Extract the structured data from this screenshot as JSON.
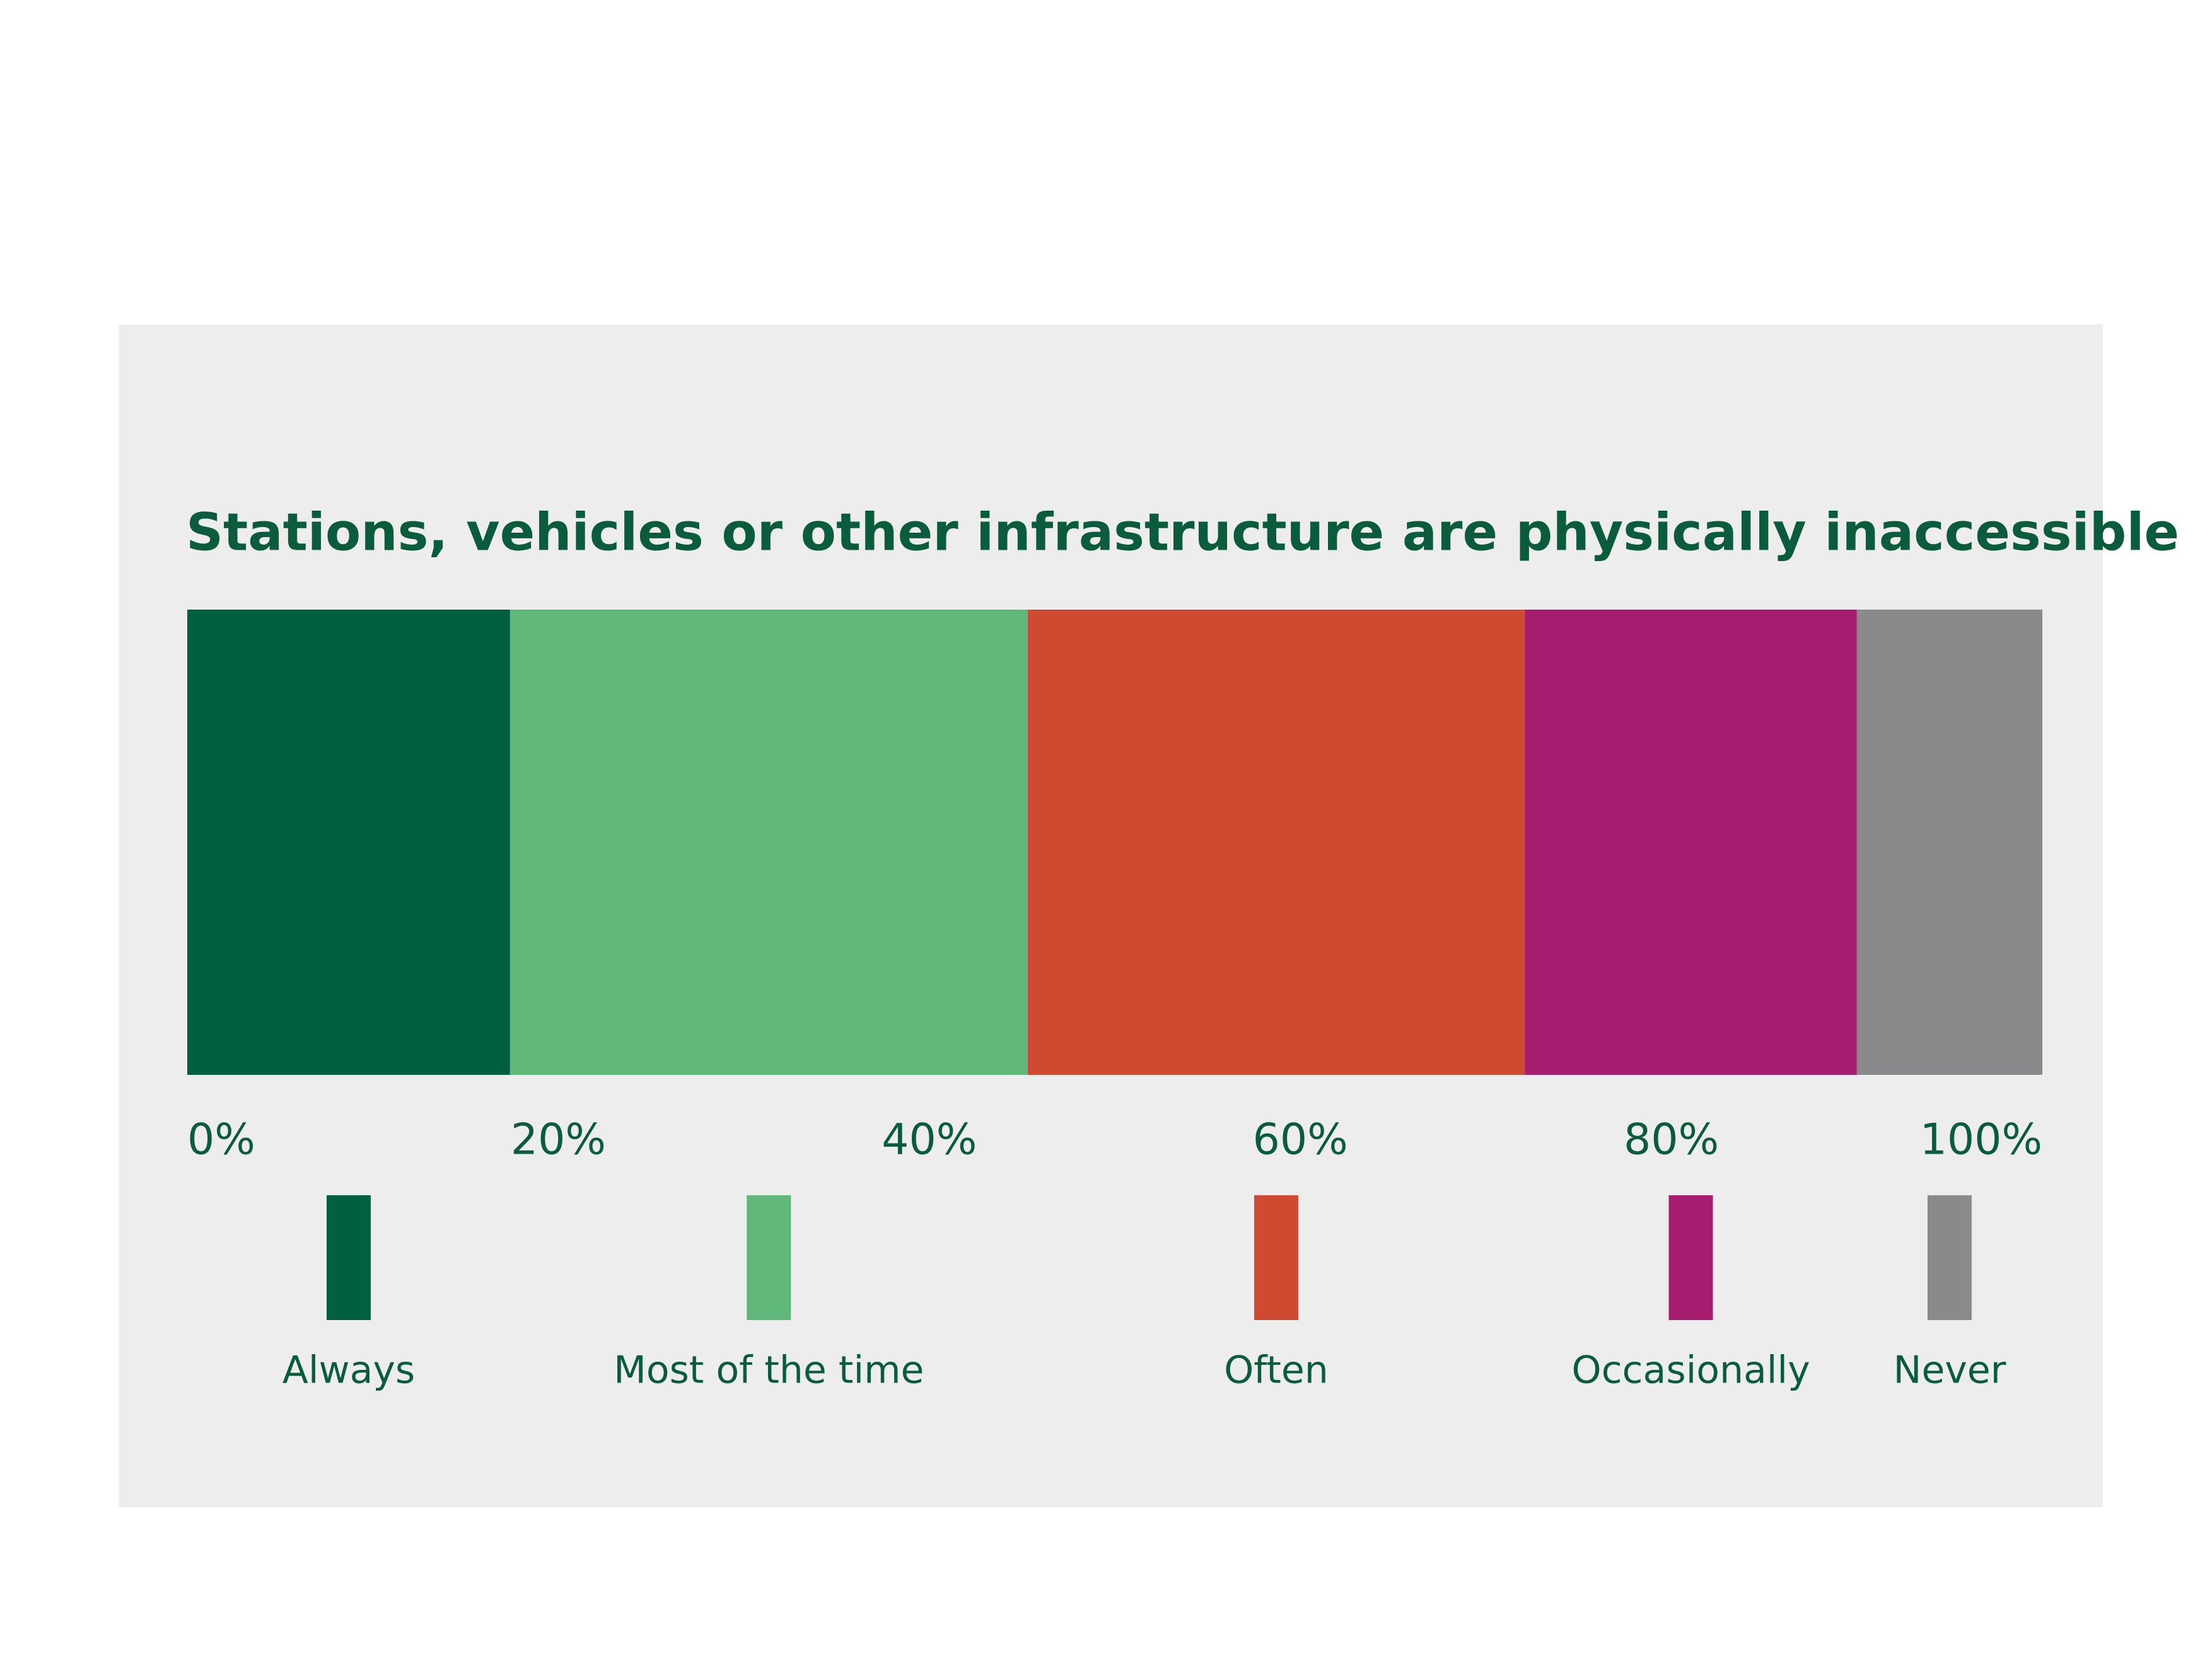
{
  "chart_data": {
    "type": "stacked_bar_100",
    "orientation": "horizontal",
    "title": "Stations, vehicles or other infrastructure are physically inaccessible",
    "series": [
      {
        "name": "Always",
        "color": "#006040",
        "values": [
          17.4
        ]
      },
      {
        "name": "Most of the time",
        "color": "#5fb87a",
        "values": [
          27.9
        ]
      },
      {
        "name": "Often",
        "color": "#d04a32",
        "values": [
          26.8
        ]
      },
      {
        "name": "Occasionally",
        "color": "#a61c6e",
        "values": [
          17.9
        ]
      },
      {
        "name": "Never",
        "color": "#8a8a8d",
        "values": [
          10.0
        ]
      }
    ],
    "xlim": [
      0,
      100
    ],
    "xticks": [
      {
        "value": 0,
        "label": "0%"
      },
      {
        "value": 20,
        "label": "20%"
      },
      {
        "value": 40,
        "label": "40%"
      },
      {
        "value": 60,
        "label": "60%"
      },
      {
        "value": 80,
        "label": "80%"
      },
      {
        "value": 100,
        "label": "100%"
      }
    ],
    "legend": "bottom"
  }
}
